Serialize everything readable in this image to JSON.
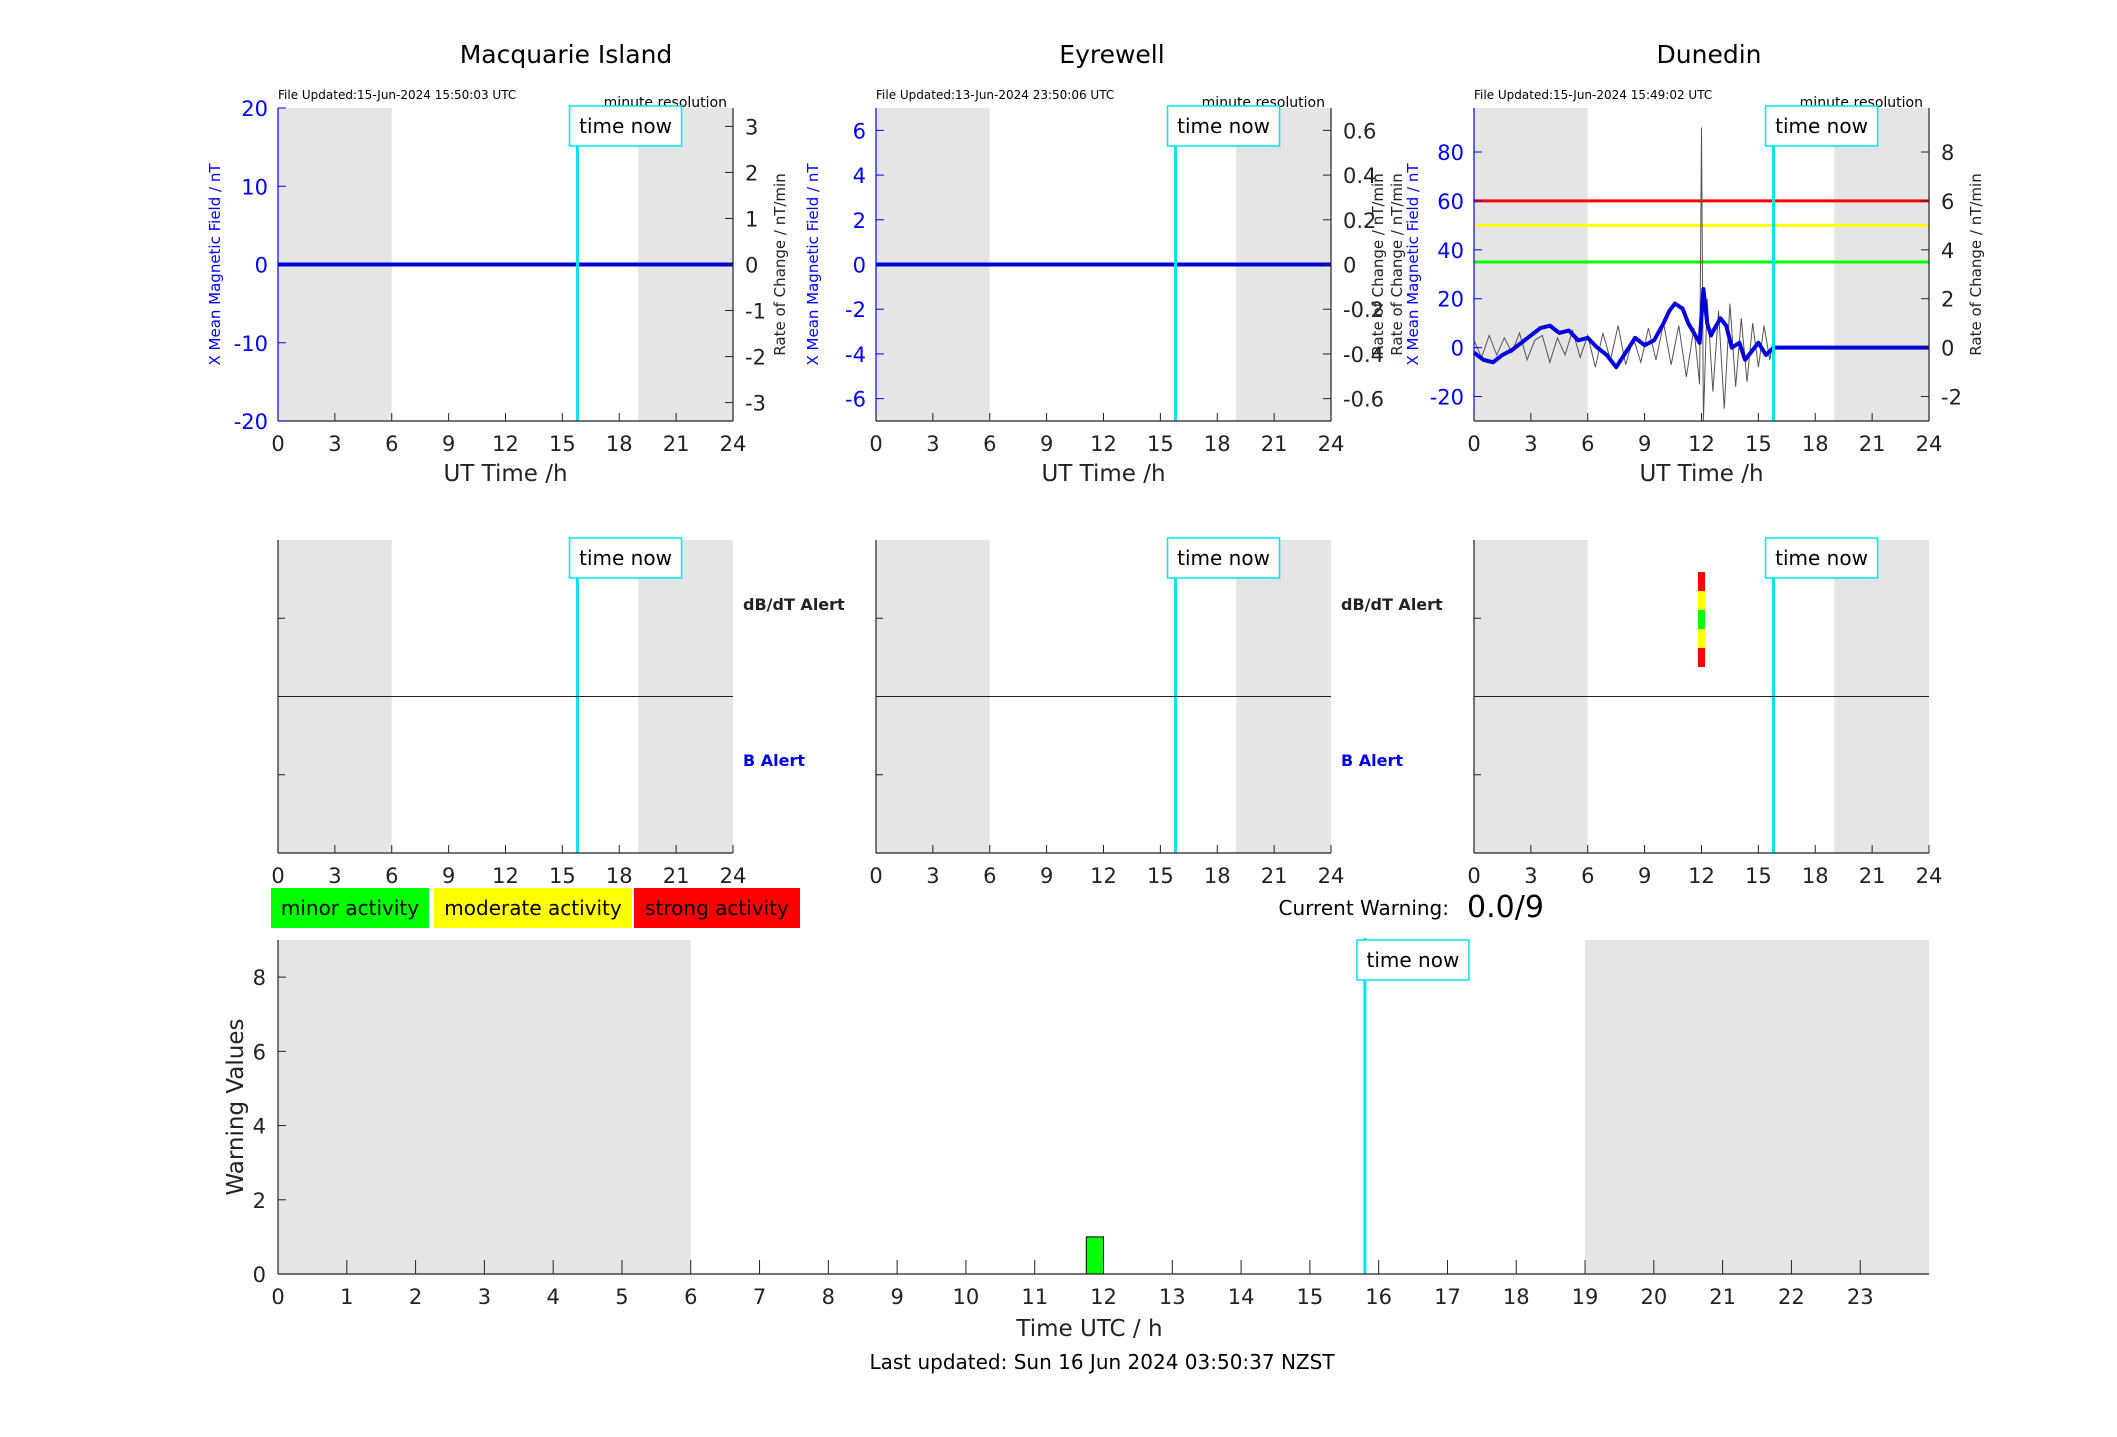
{
  "colors": {
    "night_shade": "#e5e5e5",
    "time_now": "#00e5ee",
    "field_axis": "#0000ff",
    "field_trace": "#0000dd",
    "rate_trace": "#555555",
    "red": "#ff0000",
    "yellow": "#ffff00",
    "green": "#00ff00"
  },
  "current_warning": {
    "label": "Current Warning:",
    "value": "0.0/9"
  },
  "legend": {
    "minor": "minor activity",
    "moderate": "moderate activity",
    "strong": "strong activity"
  },
  "footer": "Last updated: Sun 16 Jun 2024 03:50:37 NZST",
  "chart_data": [
    {
      "id": "mqi",
      "type": "line",
      "title": "Macquarie Island",
      "file_updated": "File Updated:15-Jun-2024 15:50:03 UTC",
      "resolution": "minute resolution",
      "xlabel": "UT Time /h",
      "ylabel_left": "X Mean Magnetic Field / nT",
      "ylabel_right": "Rate of Change / nT/min",
      "xlim": [
        0,
        24
      ],
      "xticks": [
        "0",
        "3",
        "6",
        "9",
        "12",
        "15",
        "18",
        "21",
        "24"
      ],
      "ylim_left": [
        -20,
        20
      ],
      "yticks_left": [
        "-20",
        "-10",
        "0",
        "10",
        "20"
      ],
      "ylim_right": [
        -3.4,
        3.4
      ],
      "yticks_right": [
        "-3",
        "-2",
        "-1",
        "0",
        "1",
        "2",
        "3"
      ],
      "night": [
        [
          0,
          6
        ],
        [
          19,
          24
        ]
      ],
      "time_now": 15.8,
      "time_now_label": "time now",
      "thresholds": [],
      "field": {
        "x": [
          0,
          24
        ],
        "y": [
          0,
          0
        ]
      },
      "rate": {
        "x": [],
        "y": []
      }
    },
    {
      "id": "eyr",
      "type": "line",
      "title": "Eyrewell",
      "file_updated": "File Updated:13-Jun-2024 23:50:06 UTC",
      "resolution": "minute resolution",
      "xlabel": "UT Time /h",
      "ylabel_left": "X Mean Magnetic Field / nT",
      "ylabel_right": "Rate of Change / nT/min",
      "xlim": [
        0,
        24
      ],
      "xticks": [
        "0",
        "3",
        "6",
        "9",
        "12",
        "15",
        "18",
        "21",
        "24"
      ],
      "ylim_left": [
        -7,
        7
      ],
      "yticks_left": [
        "-6",
        "-4",
        "-2",
        "0",
        "2",
        "4",
        "6"
      ],
      "ylim_right": [
        -0.7,
        0.7
      ],
      "yticks_right": [
        "-0.6",
        "-0.4",
        "-0.2",
        "0",
        "0.2",
        "0.4",
        "0.6"
      ],
      "night": [
        [
          0,
          6
        ],
        [
          19,
          24
        ]
      ],
      "time_now": 15.8,
      "time_now_label": "time now",
      "thresholds": [],
      "field": {
        "x": [
          0,
          24
        ],
        "y": [
          0,
          0
        ]
      },
      "rate": {
        "x": [],
        "y": []
      }
    },
    {
      "id": "dun",
      "type": "line",
      "title": "Dunedin",
      "file_updated": "File Updated:15-Jun-2024 15:49:02 UTC",
      "resolution": "minute resolution",
      "xlabel": "UT Time /h",
      "ylabel_left": "Rate of Change / nT/min\nX Mean Magnetic Field / nT",
      "ylabel_right": "Rate of Change / nT/min",
      "xlim": [
        0,
        24
      ],
      "xticks": [
        "0",
        "3",
        "6",
        "9",
        "12",
        "15",
        "18",
        "21",
        "24"
      ],
      "ylim_left": [
        -30,
        98
      ],
      "yticks_left": [
        "-20",
        "0",
        "20",
        "40",
        "60",
        "80"
      ],
      "ylim_right": [
        -3,
        9.8
      ],
      "yticks_right": [
        "-2",
        "0",
        "2",
        "4",
        "6",
        "8"
      ],
      "night": [
        [
          0,
          6
        ],
        [
          19,
          24
        ]
      ],
      "time_now": 15.8,
      "time_now_label": "time now",
      "thresholds": [
        {
          "y": 60,
          "color": "#ff0000"
        },
        {
          "y": 50,
          "color": "#ffff00"
        },
        {
          "y": 35,
          "color": "#00ff00"
        }
      ],
      "field": {
        "x": [
          0,
          0.5,
          1,
          1.5,
          2,
          2.5,
          3,
          3.5,
          4,
          4.5,
          5,
          5.5,
          6,
          6.5,
          7,
          7.5,
          8,
          8.5,
          9,
          9.5,
          10,
          10.3,
          10.6,
          11,
          11.3,
          11.6,
          11.9,
          12.1,
          12.3,
          12.5,
          12.7,
          13,
          13.3,
          13.6,
          14,
          14.3,
          14.6,
          15,
          15.4,
          15.8,
          16,
          24
        ],
        "y": [
          -2,
          -5,
          -6,
          -3,
          -1,
          2,
          5,
          8,
          9,
          6,
          7,
          3,
          4,
          0,
          -3,
          -8,
          -2,
          4,
          1,
          3,
          10,
          15,
          18,
          16,
          10,
          6,
          2,
          24,
          10,
          5,
          8,
          12,
          9,
          0,
          2,
          -5,
          -2,
          2,
          -3,
          0,
          0,
          0
        ]
      },
      "rate": {
        "x": [
          0,
          0.4,
          0.8,
          1.2,
          1.6,
          2,
          2.4,
          2.8,
          3.2,
          3.6,
          4,
          4.4,
          4.8,
          5.2,
          5.6,
          6,
          6.4,
          6.8,
          7.2,
          7.6,
          8,
          8.4,
          8.8,
          9.2,
          9.6,
          10,
          10.4,
          10.8,
          11.2,
          11.6,
          11.9,
          12,
          12.1,
          12.3,
          12.6,
          12.9,
          13.2,
          13.5,
          13.8,
          14.1,
          14.4,
          14.7,
          15,
          15.3,
          15.6,
          15.8
        ],
        "y": [
          0.3,
          -0.4,
          0.5,
          -0.3,
          0.4,
          -0.2,
          0.6,
          -0.5,
          0.3,
          0.5,
          -0.6,
          0.4,
          -0.3,
          0.7,
          -0.4,
          0.5,
          -0.8,
          0.6,
          -0.5,
          0.9,
          -0.7,
          0.4,
          -0.6,
          0.8,
          -0.5,
          1.0,
          -0.7,
          0.9,
          -1.2,
          0.8,
          -1.5,
          9.0,
          -3.0,
          2.0,
          -1.8,
          1.5,
          -2.5,
          1.8,
          -1.6,
          1.2,
          -1.4,
          1.0,
          -0.8,
          0.9,
          -0.5,
          0.4
        ]
      }
    },
    {
      "id": "mqi-alert",
      "type": "alert",
      "dbdt_label": "dB/dT Alert",
      "b_label": "B Alert",
      "xlim": [
        0,
        24
      ],
      "xticks": [
        "0",
        "3",
        "6",
        "9",
        "12",
        "15",
        "18",
        "21",
        "24"
      ],
      "night": [
        [
          0,
          6
        ],
        [
          19,
          24
        ]
      ],
      "time_now": 15.8,
      "time_now_label": "time now",
      "alerts": []
    },
    {
      "id": "eyr-alert",
      "type": "alert",
      "dbdt_label": "dB/dT Alert",
      "b_label": "B Alert",
      "xlim": [
        0,
        24
      ],
      "xticks": [
        "0",
        "3",
        "6",
        "9",
        "12",
        "15",
        "18",
        "21",
        "24"
      ],
      "night": [
        [
          0,
          6
        ],
        [
          19,
          24
        ]
      ],
      "time_now": 15.8,
      "time_now_label": "time now",
      "alerts": []
    },
    {
      "id": "dun-alert",
      "type": "alert",
      "dbdt_label": "",
      "b_label": "",
      "xlim": [
        0,
        24
      ],
      "xticks": [
        "0",
        "3",
        "6",
        "9",
        "12",
        "15",
        "18",
        "21",
        "24"
      ],
      "night": [
        [
          0,
          6
        ],
        [
          19,
          24
        ]
      ],
      "time_now": 15.8,
      "time_now_label": "time now",
      "alerts": [
        {
          "hour": 12,
          "level": "dbdt"
        }
      ]
    },
    {
      "id": "warning",
      "type": "bar",
      "xlabel": "Time UTC / h",
      "ylabel": "Warning Values",
      "xlim": [
        0,
        24
      ],
      "xticks": [
        "0",
        "1",
        "2",
        "3",
        "4",
        "5",
        "6",
        "7",
        "8",
        "9",
        "10",
        "11",
        "12",
        "13",
        "14",
        "15",
        "16",
        "17",
        "18",
        "19",
        "20",
        "21",
        "22",
        "23"
      ],
      "ylim": [
        0,
        9
      ],
      "yticks": [
        "0",
        "2",
        "4",
        "6",
        "8"
      ],
      "night": [
        [
          0,
          6
        ],
        [
          19,
          24
        ]
      ],
      "time_now": 15.8,
      "time_now_label": "time now",
      "bars": [
        {
          "hour": 11.75,
          "value": 1,
          "color": "#00ff00"
        }
      ]
    }
  ]
}
